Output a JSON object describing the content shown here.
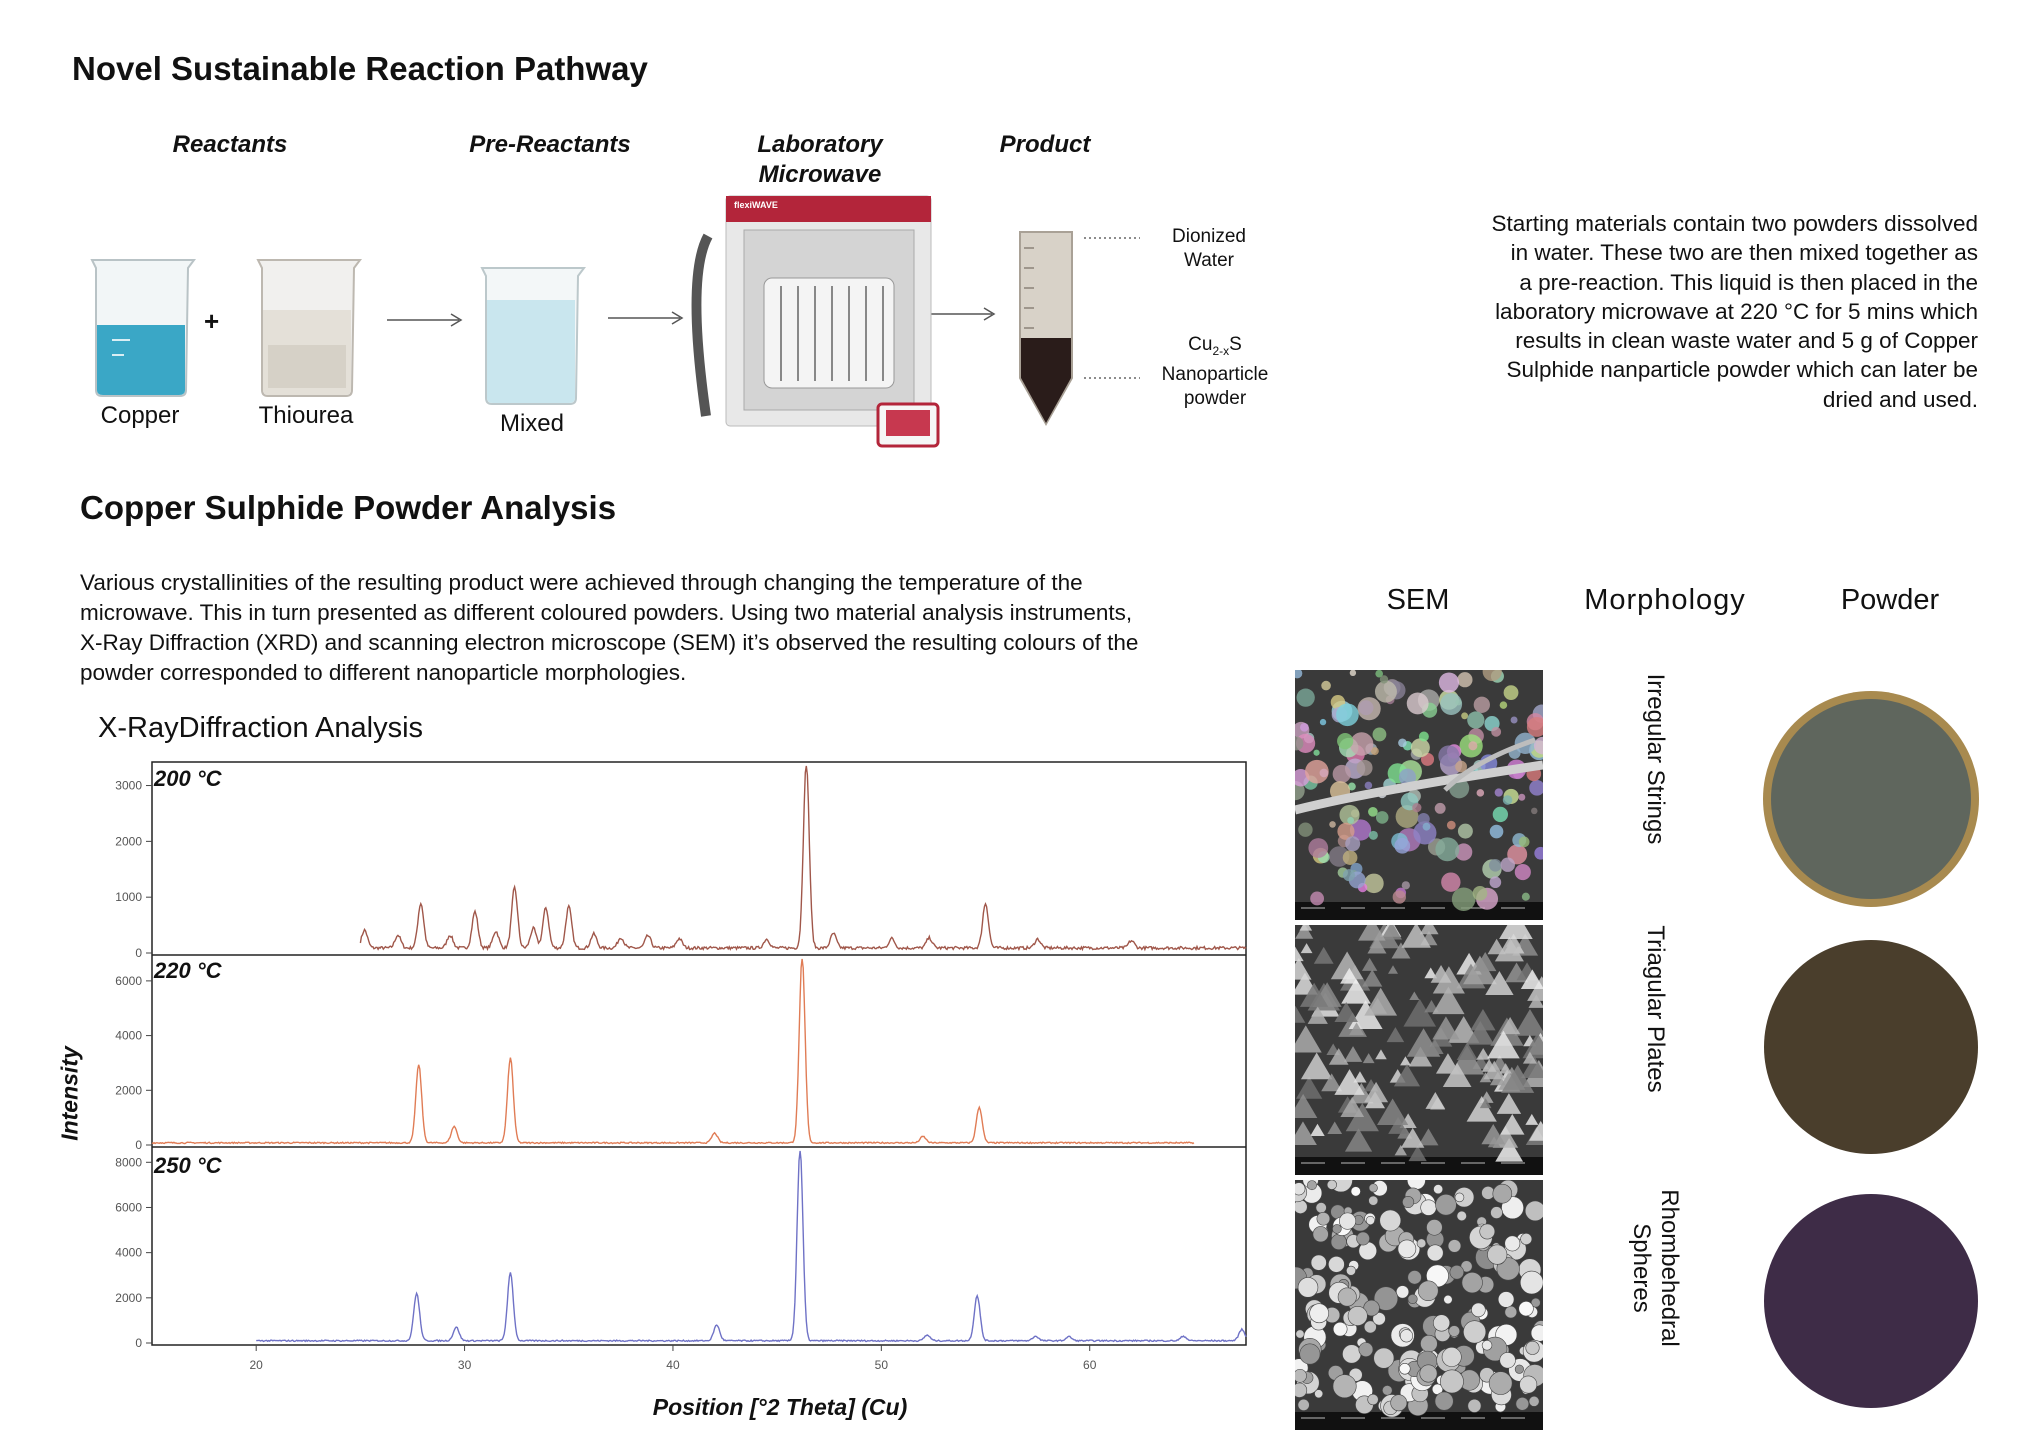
{
  "pathway": {
    "title": "Novel Sustainable Reaction Pathway",
    "stages": {
      "reactants": "Reactants",
      "pre_reactants": "Pre-Reactants",
      "microwave_line1": "Laboratory",
      "microwave_line2": "Microwave",
      "product": "Product"
    },
    "labels": {
      "copper": "Copper",
      "plus": "+",
      "thiourea": "Thiourea",
      "mixed": "Mixed",
      "water_line1": "Dionized",
      "water_line2": "Water",
      "formula_base": "Cu",
      "formula_sub": "2-x",
      "formula_tail": "S",
      "nano_line1": "Nanoparticle",
      "nano_line2": "powder"
    },
    "microwave_brand": "flexiWAVE",
    "description": [
      "Starting materials contain two powders dissolved",
      "in water. These two are then mixed together as",
      "a pre-reaction. This liquid is then placed in the",
      "laboratory microwave at 220 °C for 5 mins which",
      "results in clean waste water and 5 g of Copper",
      "Sulphide nanparticle powder which can later be",
      "dried and used."
    ],
    "colors": {
      "copper_solution": "#3aa7c6",
      "mixed_solution": "#c9e6ee",
      "product_powder": "#2a1c1a",
      "microwave_red": "#b3253a"
    }
  },
  "analysis": {
    "title": "Copper Sulphide Powder Analysis",
    "paragraph": [
      "Various crystallinities of the resulting product were achieved through changing the temperature of the",
      "microwave. This in turn presented as different coloured powders. Using two material analysis instruments,",
      "X-Ray Diffraction (XRD) and scanning electron microscope (SEM) it’s observed the resulting colours of the",
      "powder corresponded to different nanoparticle morphologies."
    ],
    "columns": {
      "sem": "SEM",
      "morphology": "Morphology",
      "powder": "Powder"
    },
    "samples": [
      {
        "morphology_line1": "Irregular Strings",
        "morphology_line2": "",
        "powder_color": "#5f665d",
        "rim_color": "#a88a4f"
      },
      {
        "morphology_line1": "Triagular Plates",
        "morphology_line2": "",
        "powder_color": "#4a3e2c",
        "rim_color": ""
      },
      {
        "morphology_line1": "Rhombehedral",
        "morphology_line2": "Spheres",
        "powder_color": "#3e2c47",
        "rim_color": ""
      }
    ]
  },
  "chart_data": {
    "type": "line",
    "title": "X-RayDiffraction  Analysis",
    "xlabel": "Position [°2 Theta] (Cu)",
    "ylabel": "Intensity",
    "xlim": [
      15,
      67.5
    ],
    "x_ticks": [
      20,
      30,
      40,
      50,
      60
    ],
    "grid": false,
    "series": [
      {
        "name": "200 °C",
        "color": "#a0574a",
        "ylim": [
          0,
          3350
        ],
        "y_ticks": [
          0,
          1000,
          2000,
          3000
        ],
        "x_range": [
          25,
          67.5
        ],
        "baseline": 90,
        "peaks": [
          [
            25.2,
            320
          ],
          [
            26.8,
            230
          ],
          [
            27.9,
            800
          ],
          [
            29.3,
            230
          ],
          [
            30.5,
            650
          ],
          [
            31.5,
            300
          ],
          [
            32.4,
            1080
          ],
          [
            33.3,
            350
          ],
          [
            33.9,
            720
          ],
          [
            35.0,
            740
          ],
          [
            36.2,
            250
          ],
          [
            37.5,
            190
          ],
          [
            38.8,
            220
          ],
          [
            40.3,
            170
          ],
          [
            44.5,
            160
          ],
          [
            46.4,
            3330
          ],
          [
            47.7,
            260
          ],
          [
            50.5,
            170
          ],
          [
            52.3,
            180
          ],
          [
            55.0,
            800
          ],
          [
            57.5,
            160
          ],
          [
            62.0,
            130
          ]
        ]
      },
      {
        "name": "220 °C",
        "color": "#e07c55",
        "ylim": [
          0,
          6800
        ],
        "y_ticks": [
          0,
          2000,
          4000,
          6000
        ],
        "x_range": [
          15,
          65
        ],
        "baseline": 80,
        "peaks": [
          [
            27.8,
            2850
          ],
          [
            29.5,
            600
          ],
          [
            32.2,
            3100
          ],
          [
            42.0,
            350
          ],
          [
            46.2,
            6800
          ],
          [
            52.0,
            230
          ],
          [
            54.7,
            1300
          ]
        ]
      },
      {
        "name": "250 °C",
        "color": "#6f72c6",
        "ylim": [
          0,
          8500
        ],
        "y_ticks": [
          0,
          2000,
          4000,
          6000,
          8000
        ],
        "x_range": [
          20,
          67.5
        ],
        "baseline": 100,
        "peaks": [
          [
            27.7,
            2100
          ],
          [
            29.6,
            600
          ],
          [
            32.2,
            3000
          ],
          [
            42.1,
            700
          ],
          [
            46.1,
            8500
          ],
          [
            52.2,
            250
          ],
          [
            54.6,
            2000
          ],
          [
            57.4,
            200
          ],
          [
            59.0,
            180
          ],
          [
            64.5,
            200
          ],
          [
            67.3,
            500
          ]
        ]
      }
    ]
  }
}
